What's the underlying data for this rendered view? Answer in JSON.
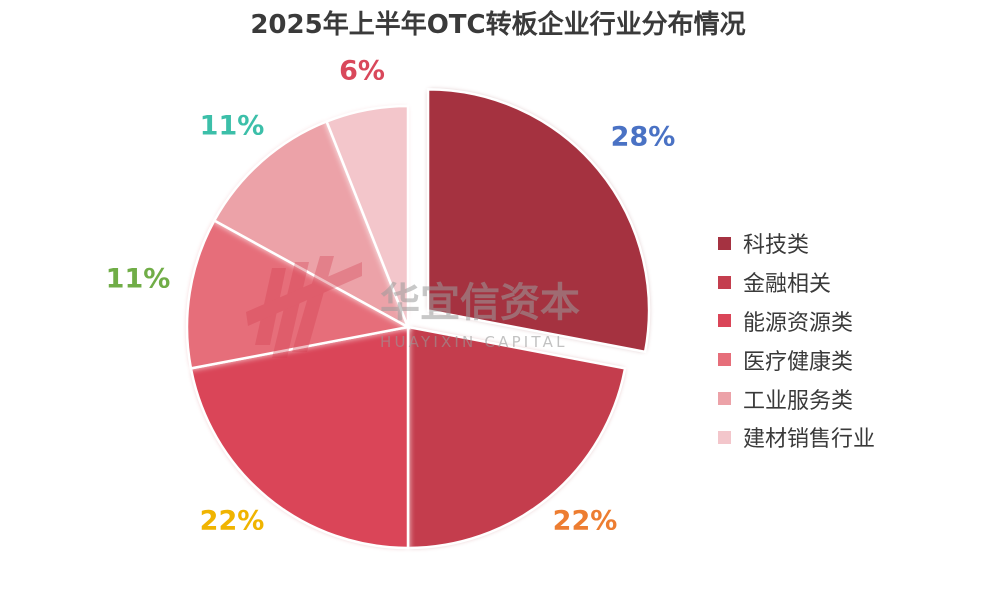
{
  "chart_data": {
    "type": "pie",
    "title": "2025年上半年OTC转板企业行业分布情况",
    "categories": [
      "科技类",
      "金融相关",
      "能源资源类",
      "医疗健康类",
      "工业服务类",
      "建材销售行业"
    ],
    "values": [
      28,
      22,
      22,
      11,
      11,
      6
    ],
    "labels": [
      "28%",
      "22%",
      "22%",
      "11%",
      "11%",
      "6%"
    ],
    "slice_colors": [
      "#a53241",
      "#c43e4e",
      "#da4558",
      "#e66e7a",
      "#eca2a8",
      "#f3c6cb"
    ],
    "label_colors": [
      "#4a72c4",
      "#ed7d31",
      "#f0b400",
      "#70ad47",
      "#3cbfa9",
      "#d9485b"
    ],
    "exploded_slice": "科技类",
    "legend_position": "right"
  },
  "watermark": {
    "name": "华宜信资本",
    "subtitle": "HUAYIXIN CAPITAL"
  }
}
